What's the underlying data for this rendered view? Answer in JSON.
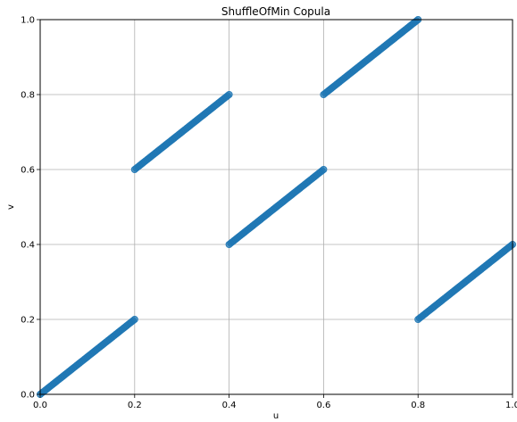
{
  "chart_data": {
    "type": "scatter",
    "title": "ShuffleOfMin Copula",
    "xlabel": "u",
    "ylabel": "v",
    "xlim": [
      0.0,
      1.0
    ],
    "ylim": [
      0.0,
      1.0
    ],
    "xticks": [
      "0.0",
      "0.2",
      "0.4",
      "0.6",
      "0.8",
      "1.0"
    ],
    "yticks": [
      "0.0",
      "0.2",
      "0.4",
      "0.6",
      "0.8",
      "1.0"
    ],
    "grid": true,
    "marker_color": "#1f77b4",
    "segments": [
      {
        "u": [
          0.0,
          0.2
        ],
        "v": [
          0.0,
          0.2
        ]
      },
      {
        "u": [
          0.2,
          0.4
        ],
        "v": [
          0.6,
          0.8
        ]
      },
      {
        "u": [
          0.4,
          0.6
        ],
        "v": [
          0.4,
          0.6
        ]
      },
      {
        "u": [
          0.6,
          0.8
        ],
        "v": [
          0.8,
          1.0
        ]
      },
      {
        "u": [
          0.8,
          1.0
        ],
        "v": [
          0.2,
          0.4
        ]
      }
    ]
  }
}
